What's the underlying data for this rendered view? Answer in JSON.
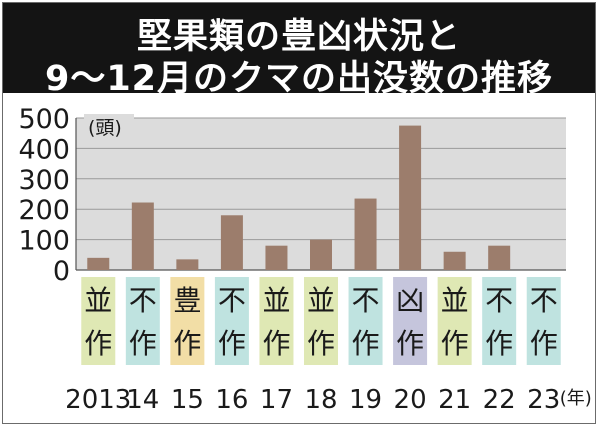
{
  "title": {
    "line1": "堅果類の豊凶状況と",
    "line2": "9～12月のクマの出没数の推移"
  },
  "colors": {
    "bar": "#9c7d6c",
    "plot_bg": "#dcdcdc",
    "title_bg": "#141414",
    "mast_average": "#dfe8b4",
    "mast_poor": "#bfe3e0",
    "mast_good": "#f2dea6",
    "mast_failure": "#c5c5dc"
  },
  "chart_data": {
    "type": "bar",
    "unit_label": "(頭)",
    "year_unit": "(年)",
    "categories": [
      "2013",
      "14",
      "15",
      "16",
      "17",
      "18",
      "19",
      "20",
      "21",
      "22",
      "23"
    ],
    "values": [
      40,
      222,
      35,
      180,
      80,
      100,
      235,
      475,
      60,
      80,
      0
    ],
    "ylim": [
      0,
      500
    ],
    "yticks": [
      "0",
      "100",
      "200",
      "300",
      "400",
      "500"
    ],
    "grid": true,
    "mast_status": [
      {
        "top": "並",
        "bottom": "作",
        "kind": "average"
      },
      {
        "top": "不",
        "bottom": "作",
        "kind": "poor"
      },
      {
        "top": "豊",
        "bottom": "作",
        "kind": "good"
      },
      {
        "top": "不",
        "bottom": "作",
        "kind": "poor"
      },
      {
        "top": "並",
        "bottom": "作",
        "kind": "average"
      },
      {
        "top": "並",
        "bottom": "作",
        "kind": "average"
      },
      {
        "top": "不",
        "bottom": "作",
        "kind": "poor"
      },
      {
        "top": "凶",
        "bottom": "作",
        "kind": "failure"
      },
      {
        "top": "並",
        "bottom": "作",
        "kind": "average"
      },
      {
        "top": "不",
        "bottom": "作",
        "kind": "poor"
      },
      {
        "top": "不",
        "bottom": "作",
        "kind": "poor"
      }
    ]
  }
}
